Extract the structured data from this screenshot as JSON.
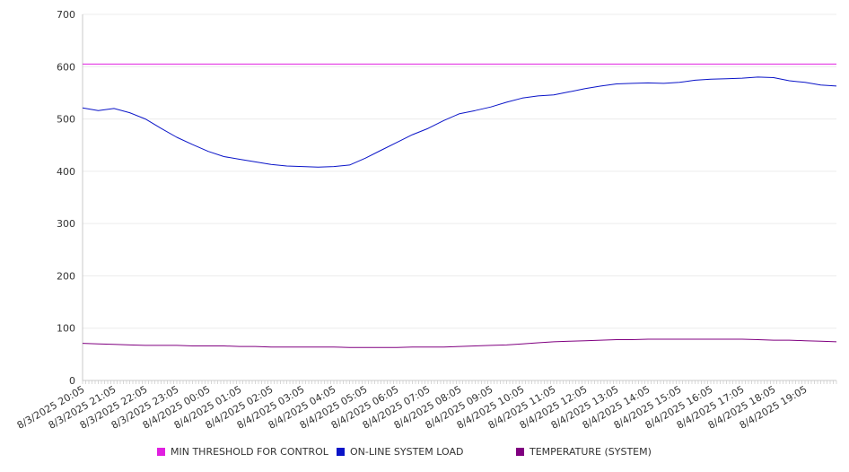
{
  "chart_data": {
    "type": "line",
    "title": "",
    "xlabel": "",
    "ylabel": "",
    "ylim": [
      0,
      700
    ],
    "yticks": [
      0,
      100,
      200,
      300,
      400,
      500,
      600,
      700
    ],
    "grid": true,
    "legend_position": "bottom",
    "x_tick_labels": [
      "8/3/2025 20:05",
      "8/3/2025 21:05",
      "8/3/2025 22:05",
      "8/3/2025 23:05",
      "8/4/2025 00:05",
      "8/4/2025 01:05",
      "8/4/2025 02:05",
      "8/4/2025 03:05",
      "8/4/2025 04:05",
      "8/4/2025 05:05",
      "8/4/2025 06:05",
      "8/4/2025 07:05",
      "8/4/2025 08:05",
      "8/4/2025 09:05",
      "8/4/2025 10:05",
      "8/4/2025 11:05",
      "8/4/2025 12:05",
      "8/4/2025 13:05",
      "8/4/2025 14:05",
      "8/4/2025 15:05",
      "8/4/2025 16:05",
      "8/4/2025 17:05",
      "8/4/2025 18:05",
      "8/4/2025 19:05"
    ],
    "x": [
      "8/3/2025 20:05",
      "8/3/2025 20:35",
      "8/3/2025 21:05",
      "8/3/2025 21:35",
      "8/3/2025 22:05",
      "8/3/2025 22:35",
      "8/3/2025 23:05",
      "8/3/2025 23:35",
      "8/4/2025 00:05",
      "8/4/2025 00:35",
      "8/4/2025 01:05",
      "8/4/2025 01:35",
      "8/4/2025 02:05",
      "8/4/2025 02:35",
      "8/4/2025 03:05",
      "8/4/2025 03:35",
      "8/4/2025 04:05",
      "8/4/2025 04:35",
      "8/4/2025 05:05",
      "8/4/2025 05:35",
      "8/4/2025 06:05",
      "8/4/2025 06:35",
      "8/4/2025 07:05",
      "8/4/2025 07:35",
      "8/4/2025 08:05",
      "8/4/2025 08:35",
      "8/4/2025 09:05",
      "8/4/2025 09:35",
      "8/4/2025 10:05",
      "8/4/2025 10:35",
      "8/4/2025 11:05",
      "8/4/2025 11:35",
      "8/4/2025 12:05",
      "8/4/2025 12:35",
      "8/4/2025 13:05",
      "8/4/2025 13:35",
      "8/4/2025 14:05",
      "8/4/2025 14:35",
      "8/4/2025 15:05",
      "8/4/2025 15:35",
      "8/4/2025 16:05",
      "8/4/2025 16:35",
      "8/4/2025 17:05",
      "8/4/2025 17:35",
      "8/4/2025 18:05",
      "8/4/2025 18:35",
      "8/4/2025 19:05",
      "8/4/2025 19:35",
      "8/4/2025 20:05"
    ],
    "series": [
      {
        "name": "MIN THRESHOLD FOR CONTROL",
        "color": "#e020e0",
        "values": [
          605,
          605,
          605,
          605,
          605,
          605,
          605,
          605,
          605,
          605,
          605,
          605,
          605,
          605,
          605,
          605,
          605,
          605,
          605,
          605,
          605,
          605,
          605,
          605,
          605,
          605,
          605,
          605,
          605,
          605,
          605,
          605,
          605,
          605,
          605,
          605,
          605,
          605,
          605,
          605,
          605,
          605,
          605,
          605,
          605,
          605,
          605,
          605,
          605
        ]
      },
      {
        "name": "ON-LINE SYSTEM LOAD",
        "color": "#0a14c8",
        "values": [
          521,
          516,
          520,
          512,
          500,
          482,
          465,
          451,
          438,
          428,
          423,
          418,
          413,
          410,
          409,
          408,
          409,
          412,
          425,
          440,
          455,
          470,
          482,
          497,
          510,
          516,
          523,
          532,
          540,
          544,
          546,
          552,
          558,
          563,
          567,
          568,
          569,
          568,
          570,
          574,
          576,
          577,
          578,
          580,
          579,
          573,
          570,
          565,
          563
        ]
      },
      {
        "name": "TEMPERATURE (SYSTEM)",
        "color": "#800080",
        "values": [
          71,
          70,
          69,
          68,
          67,
          67,
          67,
          66,
          66,
          66,
          65,
          65,
          64,
          64,
          64,
          64,
          64,
          63,
          63,
          63,
          63,
          64,
          64,
          64,
          65,
          66,
          67,
          68,
          70,
          72,
          74,
          75,
          76,
          77,
          78,
          78,
          79,
          79,
          79,
          79,
          79,
          79,
          79,
          78,
          77,
          77,
          76,
          75,
          74
        ]
      }
    ]
  }
}
